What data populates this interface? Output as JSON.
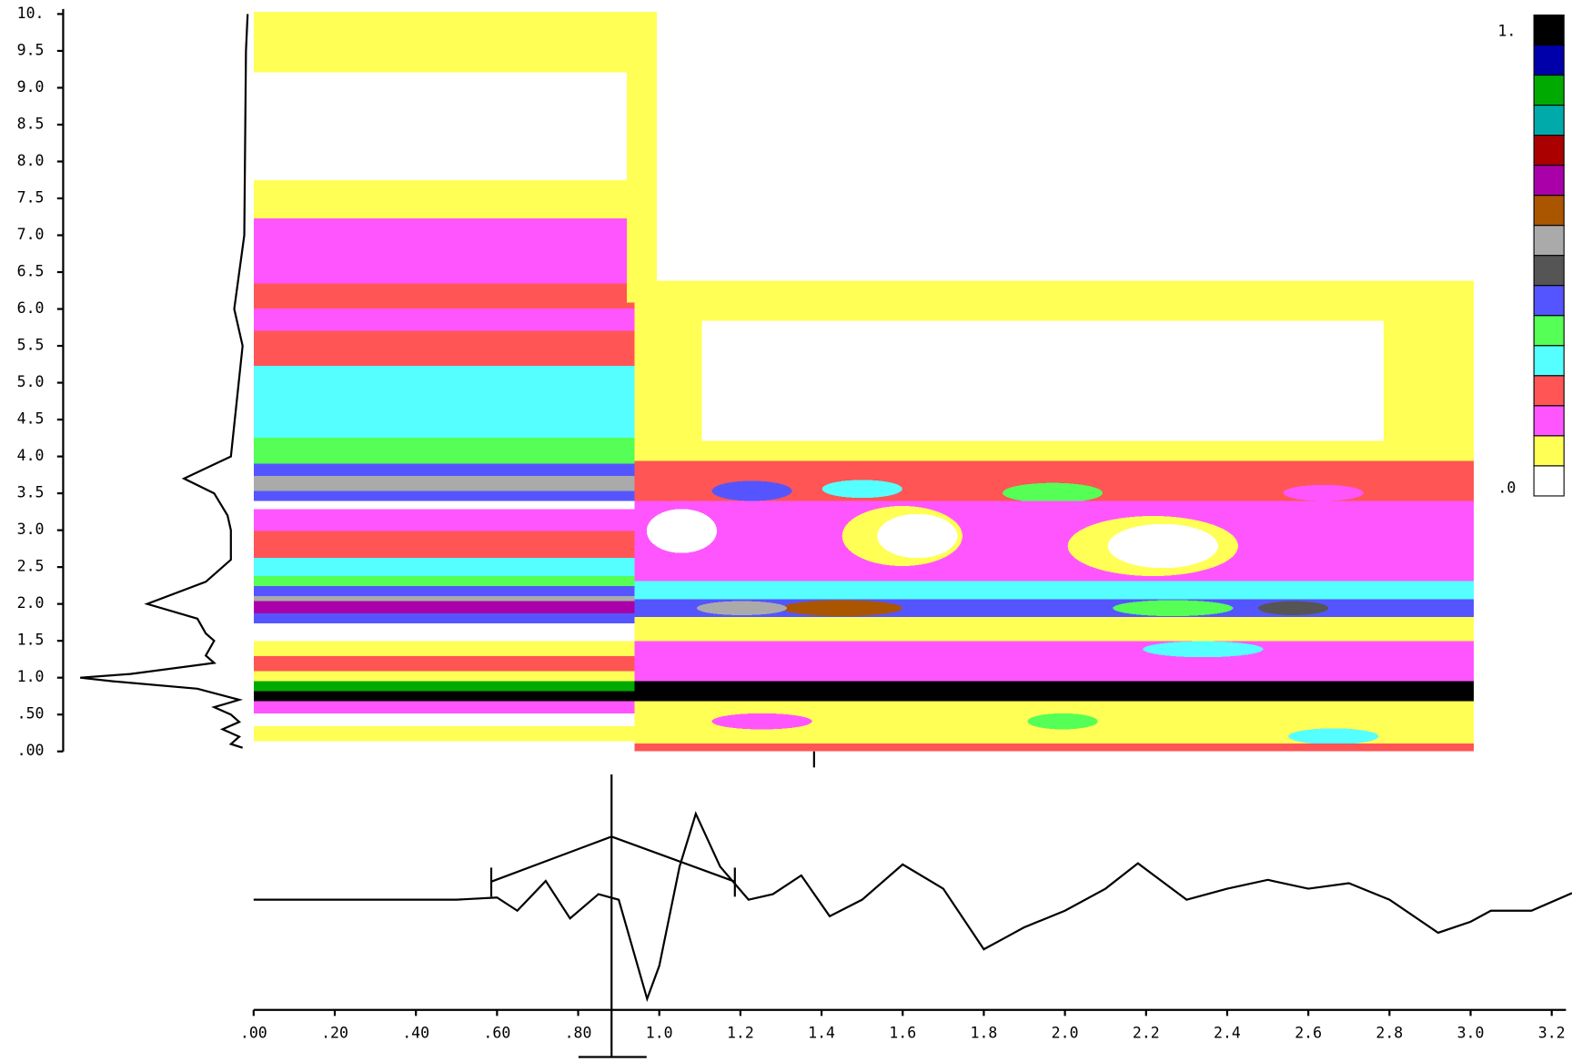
{
  "colorbar": {
    "colors": [
      "#000000",
      "#0000aa",
      "#00aa00",
      "#00aaaa",
      "#aa0000",
      "#aa00aa",
      "#aa5500",
      "#aaaaaa",
      "#555555",
      "#5555ff",
      "#55ff55",
      "#55ffff",
      "#ff5555",
      "#ff55ff",
      "#ffff55",
      "#ffffff"
    ],
    "max_label": "1.",
    "min_label": ".0"
  },
  "chart_data": [
    {
      "type": "spectrum",
      "color": "#000000",
      "x": [
        0.05,
        0.1,
        0.2,
        0.3,
        0.4,
        0.5,
        0.6,
        0.7,
        0.85,
        0.95,
        1.0,
        1.05,
        1.2,
        1.3,
        1.5,
        1.6,
        1.8,
        2.0,
        2.3,
        2.6,
        3.0,
        3.2,
        3.5,
        3.7,
        4.0,
        5.5,
        6.0,
        7.0,
        9.5,
        10.0
      ],
      "values": [
        0.03,
        0.1,
        0.05,
        0.15,
        0.05,
        0.1,
        0.2,
        0.05,
        0.3,
        0.8,
        1.0,
        0.7,
        0.2,
        0.25,
        0.2,
        0.25,
        0.3,
        0.6,
        0.25,
        0.1,
        0.1,
        0.12,
        0.2,
        0.38,
        0.1,
        0.03,
        0.08,
        0.02,
        0.01,
        0.0
      ],
      "ylim": [
        0,
        10
      ],
      "yticks": [
        {
          "value": 0,
          "label": ".00"
        },
        {
          "value": 0.5,
          "label": ".50"
        },
        {
          "value": 1,
          "label": "1.0"
        },
        1.5,
        {
          "value": 2,
          "label": "2.0"
        },
        2.5,
        {
          "value": 3,
          "label": "3.0"
        },
        3.5,
        {
          "value": 4,
          "label": "4.0"
        },
        4.5,
        {
          "value": 5,
          "label": "5.0"
        },
        5.5,
        {
          "value": 6,
          "label": "6.0"
        },
        6.5,
        {
          "value": 7,
          "label": "7.0"
        },
        7.5,
        {
          "value": 8,
          "label": "8.0"
        },
        8.5,
        {
          "value": 9,
          "label": "9.0"
        },
        9.5,
        {
          "value": 10,
          "label": "10."
        }
      ]
    },
    {
      "type": "line",
      "color": "#000000",
      "x": [
        0,
        0.5,
        0.6,
        0.65,
        0.72,
        0.78,
        0.85,
        0.9,
        0.97,
        1.0,
        1.05,
        1.09,
        1.15,
        1.22,
        1.28,
        1.35,
        1.42,
        1.5,
        1.6,
        1.7,
        1.8,
        1.85,
        1.9,
        2.0,
        2.1,
        2.18,
        2.3,
        2.4,
        2.5,
        2.6,
        2.7,
        2.8,
        2.92,
        3.0,
        3.05,
        3.15,
        3.25
      ],
      "values": [
        0,
        0,
        0.02,
        -0.1,
        0.17,
        -0.17,
        0.05,
        0,
        -0.9,
        -0.6,
        0.3,
        0.78,
        0.3,
        0,
        0.05,
        0.22,
        -0.15,
        0,
        0.32,
        0.1,
        -0.45,
        -0.35,
        -0.25,
        -0.1,
        0.1,
        0.33,
        0,
        0.1,
        0.18,
        0.1,
        0.15,
        0,
        -0.3,
        -0.2,
        -0.1,
        -0.1,
        0.06
      ],
      "xlim": [
        0,
        3.25
      ],
      "xticks": [
        {
          "value": 0,
          "label": ".00"
        },
        {
          "value": 0.2,
          "label": ".20"
        },
        {
          "value": 0.4,
          "label": ".40"
        },
        {
          "value": 0.6,
          "label": ".60"
        },
        {
          "value": 0.8,
          "label": ".80"
        },
        {
          "value": 1,
          "label": "1.0"
        },
        1.2,
        1.4,
        1.6,
        1.8,
        {
          "value": 2,
          "label": "2.0"
        },
        2.2,
        2.4,
        2.6,
        2.8,
        {
          "value": 3,
          "label": "3.0"
        },
        3.2
      ]
    }
  ]
}
